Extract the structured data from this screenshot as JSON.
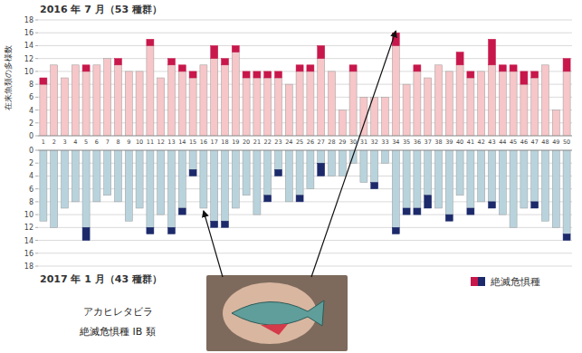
{
  "chart_data": [
    {
      "type": "bar",
      "stacked": true,
      "grid": true,
      "title": "2016 年 7 月（53 種群）",
      "y_label": "在来魚類の多様数",
      "categories": [
        "1",
        "2",
        "3",
        "4",
        "5",
        "6",
        "7",
        "8",
        "9",
        "10",
        "11",
        "12",
        "13",
        "14",
        "15",
        "16",
        "17",
        "18",
        "19",
        "20",
        "21",
        "22",
        "23",
        "24",
        "25",
        "26",
        "27",
        "28",
        "29",
        "30",
        "31",
        "32",
        "33",
        "34",
        "35",
        "36",
        "37",
        "38",
        "39",
        "40",
        "41",
        "42",
        "43",
        "44",
        "45",
        "46",
        "47",
        "48",
        "49",
        "50"
      ],
      "ylim": [
        0,
        18
      ],
      "yticks": [
        0,
        2,
        4,
        6,
        8,
        10,
        12,
        14,
        16,
        18
      ],
      "series": [
        {
          "color": "#f6c6c8",
          "values": [
            8,
            11,
            9,
            11,
            10,
            11,
            12,
            11,
            10,
            10,
            14,
            9,
            11,
            10,
            9,
            11,
            12,
            11,
            13,
            9,
            9,
            9,
            9,
            8,
            10,
            10,
            12,
            10,
            4,
            10,
            6,
            6,
            6,
            14,
            8,
            10,
            9,
            11,
            10,
            11,
            9,
            10,
            11,
            10,
            10,
            8,
            9,
            11,
            4,
            10
          ]
        },
        {
          "name": "絶滅危惧種",
          "color": "#c8174b",
          "values": [
            1,
            0,
            0,
            0,
            1,
            0,
            0,
            1,
            0,
            0,
            1,
            0,
            1,
            1,
            1,
            0,
            2,
            1,
            1,
            1,
            1,
            1,
            1,
            0,
            1,
            1,
            2,
            0,
            0,
            1,
            0,
            0,
            0,
            2,
            0,
            1,
            0,
            0,
            0,
            2,
            1,
            0,
            4,
            1,
            1,
            2,
            1,
            0,
            0,
            2
          ]
        }
      ]
    },
    {
      "type": "bar",
      "stacked": true,
      "grid": true,
      "tick_labels": "y",
      "legend": "lower right",
      "title": "2017 年 1 月（43 種群）",
      "categories": [
        null,
        null,
        null,
        null,
        null,
        null,
        null,
        null,
        null,
        null,
        null,
        null,
        null,
        null,
        null,
        null,
        null,
        null,
        null,
        null,
        null,
        null,
        null,
        null,
        null,
        null,
        null,
        null,
        null,
        null,
        null,
        null,
        null,
        null,
        null,
        null,
        null,
        null,
        null,
        null,
        null,
        null,
        null,
        null,
        null,
        null,
        null,
        null,
        null,
        null
      ],
      "ylim": [
        18,
        0
      ],
      "yticks": [
        0,
        2,
        4,
        6,
        8,
        10,
        12,
        14,
        16,
        18
      ],
      "series": [
        {
          "color": "#b9d3dd",
          "values": [
            11,
            12,
            9,
            8,
            12,
            8,
            7,
            8,
            11,
            9,
            12,
            10,
            12,
            9,
            3,
            9,
            11,
            11,
            9,
            7,
            10,
            7,
            3,
            8,
            7,
            6,
            2,
            4,
            4,
            2,
            5,
            5,
            2,
            12,
            9,
            9,
            7,
            9,
            10,
            7,
            9,
            8,
            8,
            10,
            12,
            9,
            8,
            11,
            12,
            13
          ]
        },
        {
          "color": "#1c2a6b",
          "values": [
            0,
            0,
            0,
            0,
            2,
            0,
            0,
            0,
            0,
            0,
            1,
            0,
            1,
            1,
            1,
            0,
            1,
            1,
            0,
            0,
            0,
            1,
            1,
            0,
            1,
            0,
            2,
            0,
            0,
            0,
            0,
            1,
            0,
            1,
            1,
            1,
            2,
            0,
            1,
            0,
            1,
            0,
            1,
            0,
            0,
            0,
            1,
            0,
            0,
            1
          ]
        }
      ]
    }
  ],
  "annotation": {
    "lines": [
      "アカヒレタビラ",
      "絶滅危惧種 IB 類"
    ],
    "targets": [
      {
        "chart": 1,
        "category": "16"
      },
      {
        "chart": 0,
        "category": "34"
      }
    ]
  }
}
